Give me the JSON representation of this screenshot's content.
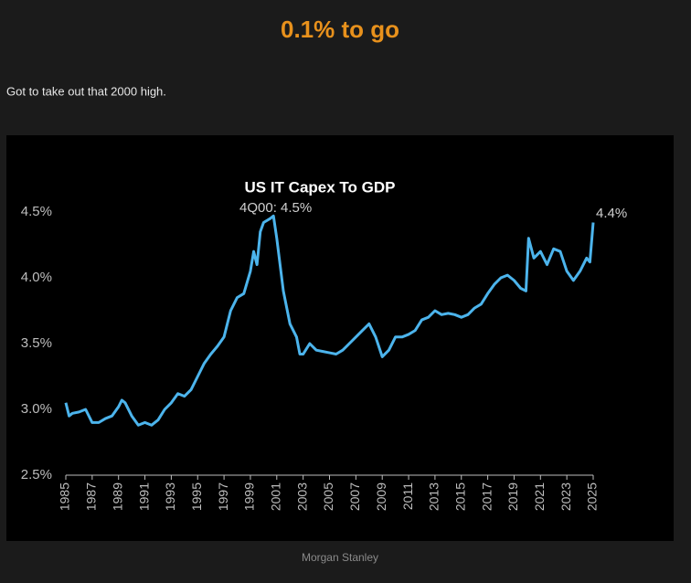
{
  "header": {
    "title": "0.1% to go",
    "subtitle": "Got to take out that 2000 high."
  },
  "chart_data": {
    "type": "line",
    "title": "US IT Capex To GDP",
    "annotations": [
      "4Q00: 4.5%",
      "4.4%"
    ],
    "x": [
      1985,
      1985.25,
      1985.5,
      1986,
      1986.5,
      1987,
      1987.5,
      1988,
      1988.5,
      1989,
      1989.25,
      1989.5,
      1990,
      1990.5,
      1991,
      1991.5,
      1992,
      1992.5,
      1993,
      1993.5,
      1994,
      1994.5,
      1995,
      1995.5,
      1996,
      1996.5,
      1997,
      1997.5,
      1998,
      1998.5,
      1999,
      1999.25,
      1999.5,
      1999.75,
      2000,
      2000.5,
      2000.75,
      2001,
      2001.5,
      2002,
      2002.5,
      2002.75,
      2003,
      2003.5,
      2004,
      2004.5,
      2005,
      2005.5,
      2006,
      2006.5,
      2007,
      2007.5,
      2008,
      2008.5,
      2009,
      2009.5,
      2010,
      2010.5,
      2011,
      2011.5,
      2012,
      2012.5,
      2013,
      2013.5,
      2014,
      2014.5,
      2015,
      2015.5,
      2016,
      2016.5,
      2017,
      2017.5,
      2018,
      2018.5,
      2019,
      2019.5,
      2019.9,
      2020.1,
      2020.5,
      2021,
      2021.5,
      2022,
      2022.5,
      2023,
      2023.5,
      2024,
      2024.5,
      2024.75,
      2025
    ],
    "series": [
      {
        "name": "US IT Capex To GDP",
        "color": "#4cb4ec",
        "values": [
          3.05,
          2.95,
          2.97,
          2.98,
          3.0,
          2.9,
          2.9,
          2.93,
          2.95,
          3.02,
          3.07,
          3.05,
          2.95,
          2.88,
          2.9,
          2.88,
          2.92,
          3.0,
          3.05,
          3.12,
          3.1,
          3.15,
          3.25,
          3.35,
          3.42,
          3.48,
          3.55,
          3.75,
          3.85,
          3.88,
          4.05,
          4.2,
          4.1,
          4.35,
          4.42,
          4.45,
          4.47,
          4.3,
          3.9,
          3.65,
          3.55,
          3.42,
          3.42,
          3.5,
          3.45,
          3.44,
          3.43,
          3.42,
          3.45,
          3.5,
          3.55,
          3.6,
          3.65,
          3.55,
          3.4,
          3.45,
          3.55,
          3.55,
          3.57,
          3.6,
          3.68,
          3.7,
          3.75,
          3.72,
          3.73,
          3.72,
          3.7,
          3.72,
          3.77,
          3.8,
          3.88,
          3.95,
          4.0,
          4.02,
          3.98,
          3.92,
          3.9,
          4.3,
          4.15,
          4.2,
          4.1,
          4.22,
          4.2,
          4.05,
          3.98,
          4.05,
          4.15,
          4.12,
          4.42
        ]
      }
    ],
    "xlim": [
      1985,
      2025
    ],
    "xticks": [
      1985,
      1987,
      1989,
      1991,
      1993,
      1995,
      1997,
      1999,
      2001,
      2003,
      2005,
      2007,
      2009,
      2011,
      2013,
      2015,
      2017,
      2019,
      2021,
      2023,
      2025
    ],
    "ylim": [
      2.5,
      4.5
    ],
    "yticks": [
      {
        "value": 2.5,
        "label": "2.5%"
      },
      {
        "value": 3.0,
        "label": "3.0%"
      },
      {
        "value": 3.5,
        "label": "3.5%"
      },
      {
        "value": 4.0,
        "label": "4.0%"
      },
      {
        "value": 4.5,
        "label": "4.5%"
      }
    ],
    "grid": false
  },
  "footer": {
    "source": "Morgan Stanley"
  }
}
